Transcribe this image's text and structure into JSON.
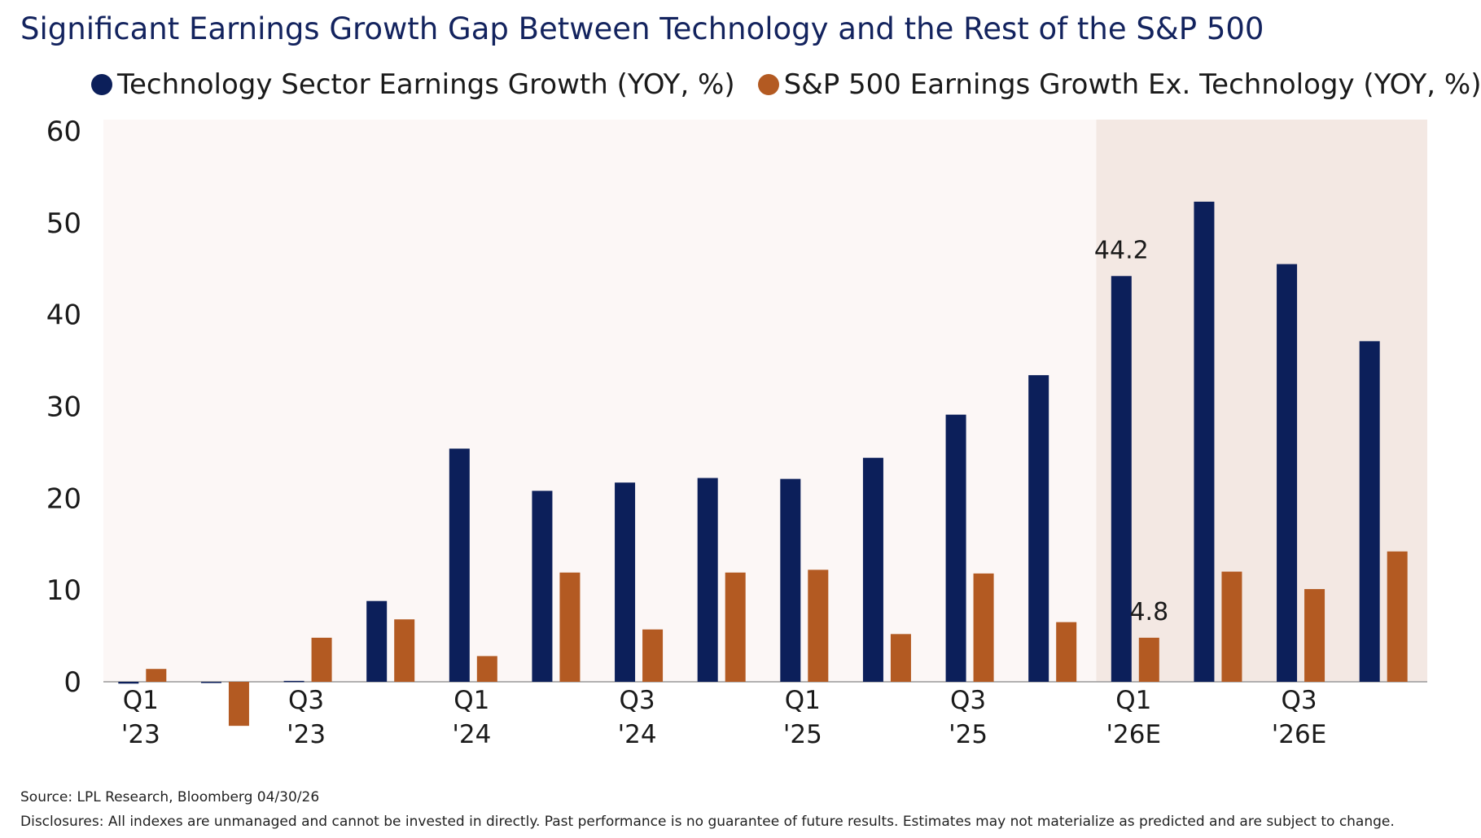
{
  "chart_data": {
    "type": "bar",
    "title": "Significant Earnings Growth Gap Between Technology and the Rest of the S&P 500",
    "categories": [
      "Q1 '23",
      null,
      "Q3 '23",
      null,
      "Q1 '24",
      null,
      "Q3 '24",
      null,
      "Q1 '25",
      null,
      "Q3 '25",
      null,
      "Q1 '26E",
      null,
      "Q3 '26E",
      null
    ],
    "series": [
      {
        "name": "Technology Sector Earnings Growth (YOY, %)",
        "color": "#0c1f5a",
        "values": [
          -0.2,
          -0.1,
          0.1,
          8.8,
          25.4,
          20.8,
          21.7,
          22.2,
          22.1,
          24.4,
          29.1,
          33.4,
          44.2,
          52.3,
          45.5,
          37.1
        ]
      },
      {
        "name": "S&P 500 Earnings Growth Ex. Technology (YOY, %)",
        "color": "#b35a22",
        "values": [
          1.4,
          -4.8,
          4.8,
          6.8,
          2.8,
          11.9,
          5.7,
          11.9,
          12.2,
          5.2,
          11.8,
          6.5,
          4.8,
          12.0,
          10.1,
          14.2
        ]
      }
    ],
    "ylim": [
      0,
      60
    ],
    "yticks": [
      0,
      10,
      20,
      30,
      40,
      50,
      60
    ],
    "source": "Source: LPL Research, Bloomberg 04/30/26",
    "disclosures": "Disclosures: All indexes are unmanaged and cannot be invested in directly. Past performance is no guarantee of future results. Estimates may not materialize as predicted and are subject to change."
  }
}
